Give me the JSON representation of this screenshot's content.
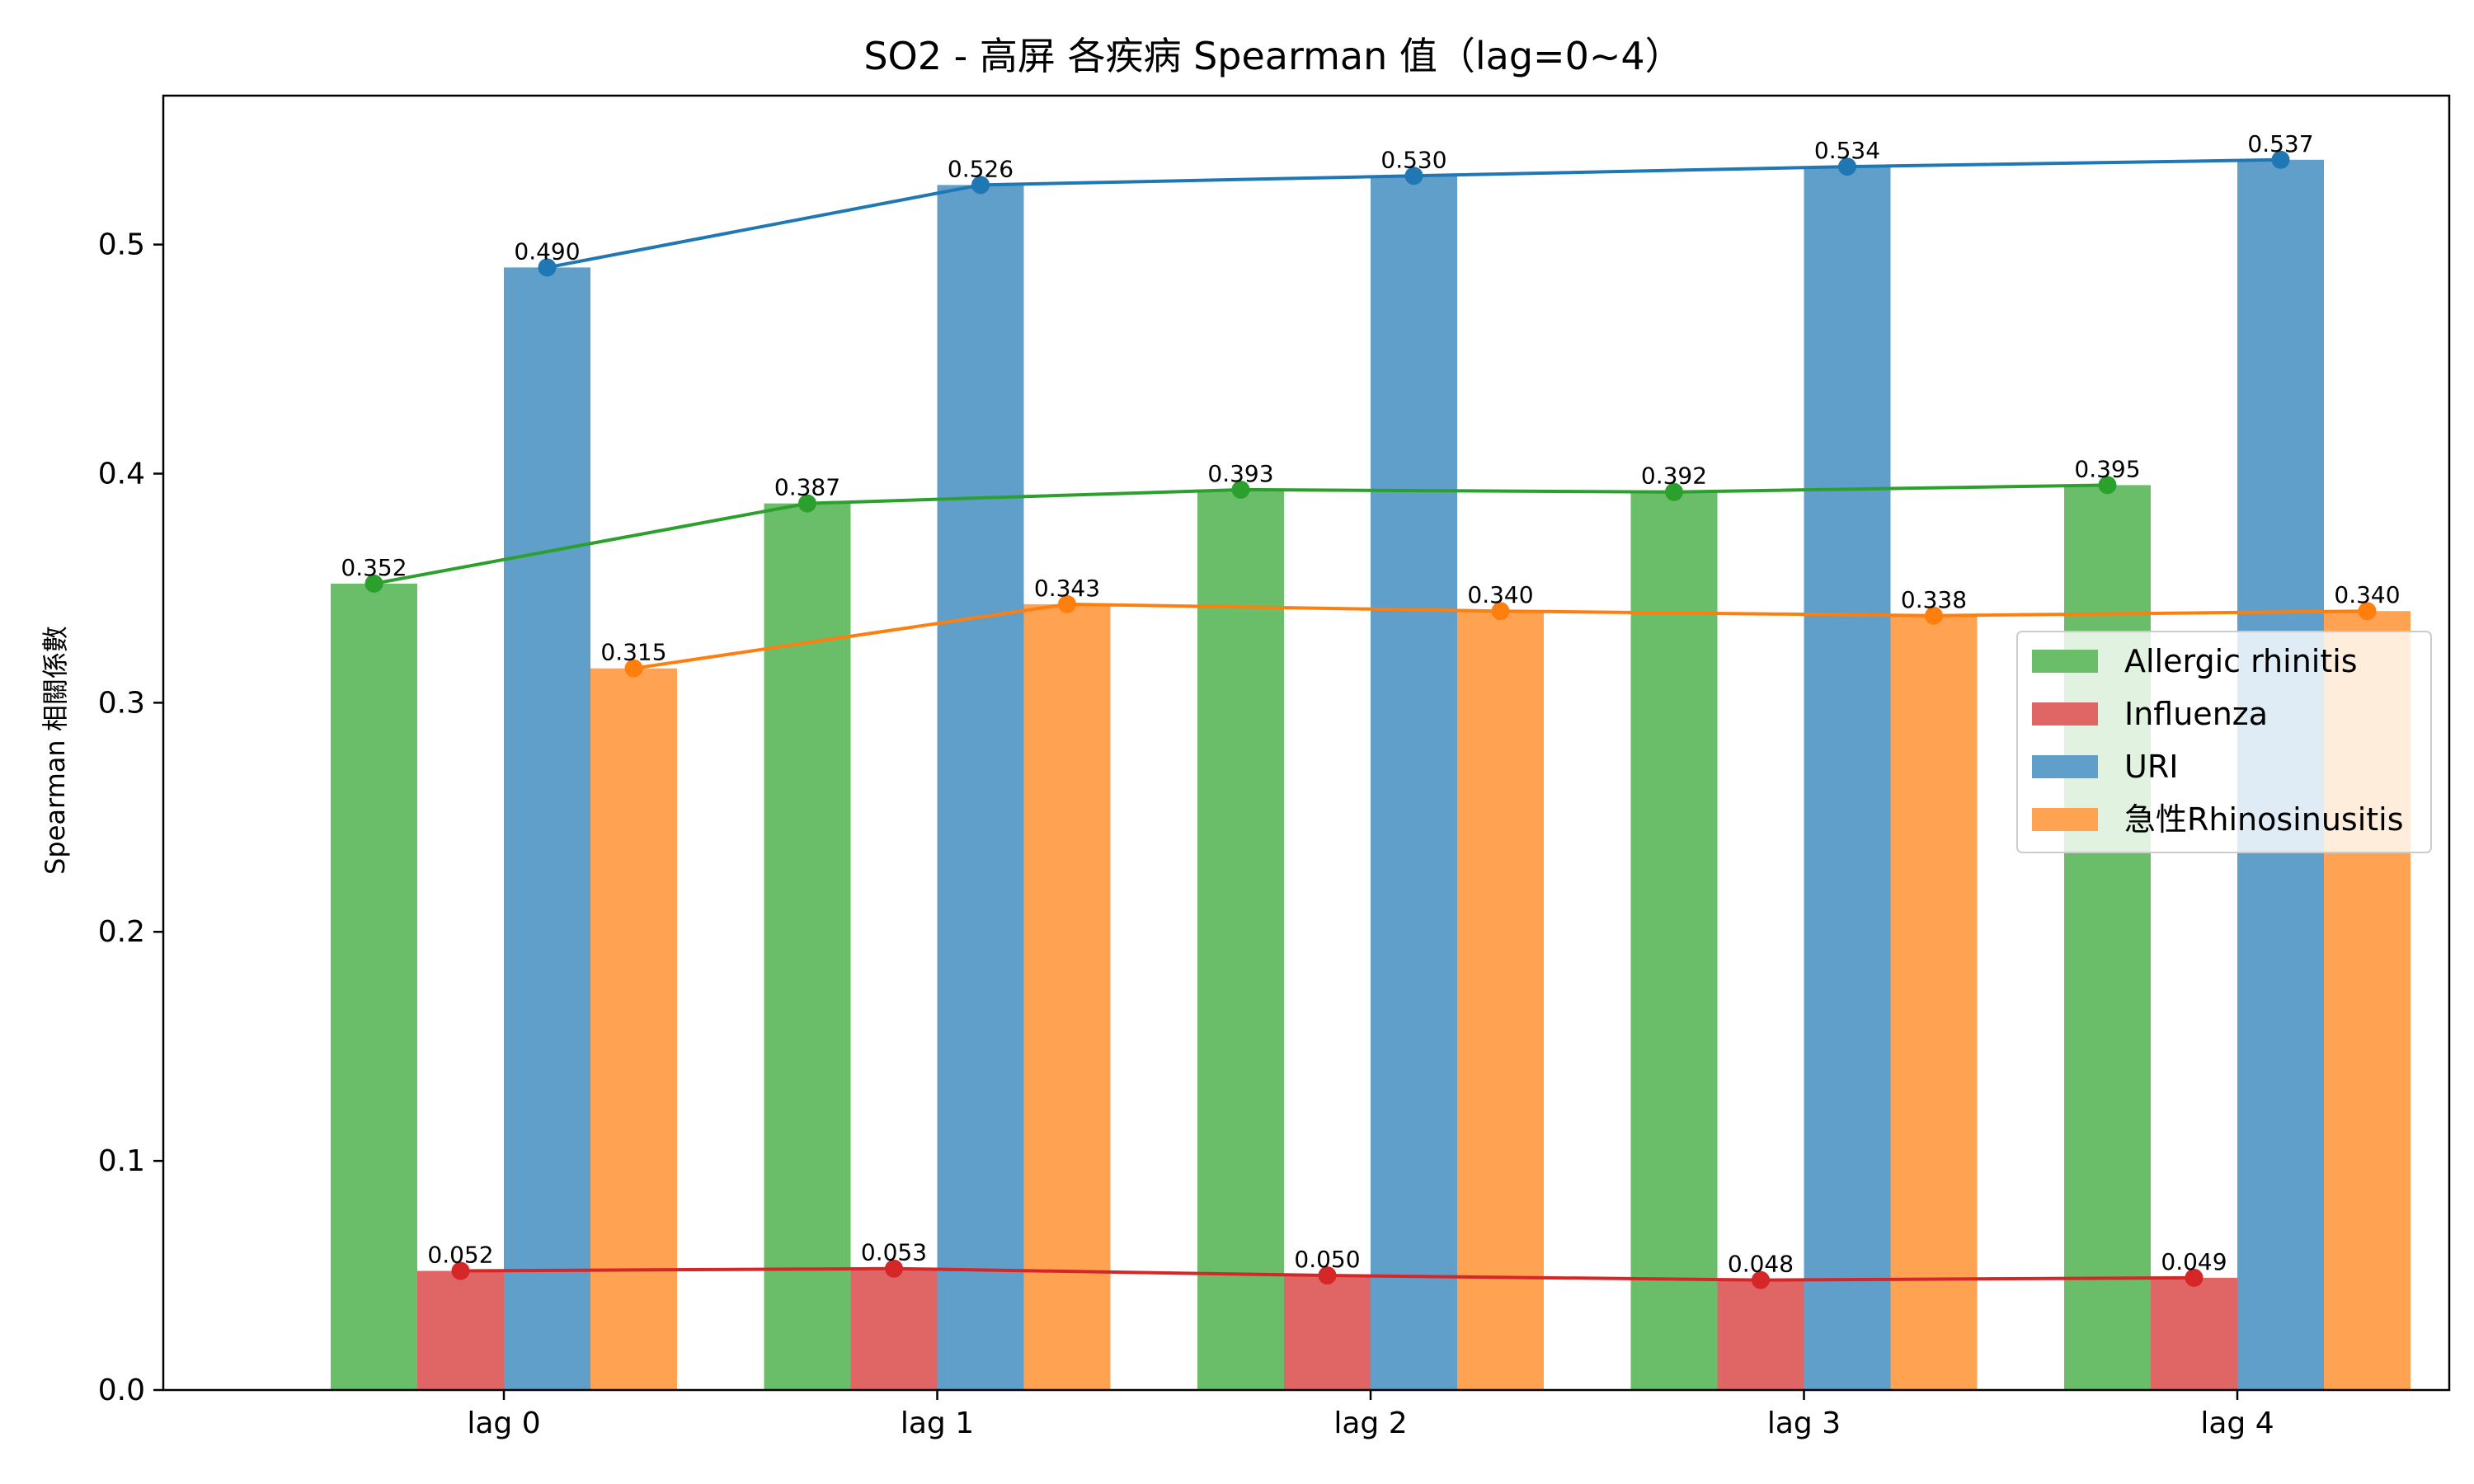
{
  "chart_data": {
    "type": "bar",
    "title": "SO2 - 高屏 各疾病 Spearman 值（lag=0~4）",
    "xlabel": "",
    "ylabel": "Spearman 相關係數",
    "categories": [
      "lag 0",
      "lag 1",
      "lag 2",
      "lag 3",
      "lag 4"
    ],
    "ylim": [
      0,
      0.565
    ],
    "yticks": [
      0.0,
      0.1,
      0.2,
      0.3,
      0.4,
      0.5
    ],
    "ytick_labels": [
      "0.0",
      "0.1",
      "0.2",
      "0.3",
      "0.4",
      "0.5"
    ],
    "grid": false,
    "legend_position": "center-right",
    "series": [
      {
        "name": "Allergic rhinitis",
        "values": [
          0.352,
          0.387,
          0.393,
          0.392,
          0.395
        ],
        "labels": [
          "0.352",
          "0.387",
          "0.393",
          "0.392",
          "0.395"
        ],
        "bar_color": "#6abe6a",
        "line_color": "#2ca02c"
      },
      {
        "name": "Influenza",
        "values": [
          0.052,
          0.053,
          0.05,
          0.048,
          0.049
        ],
        "labels": [
          "0.052",
          "0.053",
          "0.050",
          "0.048",
          "0.049"
        ],
        "bar_color": "#e06666",
        "line_color": "#d62728"
      },
      {
        "name": "URI",
        "values": [
          0.49,
          0.526,
          0.53,
          0.534,
          0.537
        ],
        "labels": [
          "0.490",
          "0.526",
          "0.530",
          "0.534",
          "0.537"
        ],
        "bar_color": "#609fca",
        "line_color": "#1f77b4"
      },
      {
        "name": "急性Rhinosinusitis",
        "values": [
          0.315,
          0.343,
          0.34,
          0.338,
          0.34
        ],
        "labels": [
          "0.315",
          "0.343",
          "0.340",
          "0.338",
          "0.340"
        ],
        "bar_color": "#ffa352",
        "line_color": "#ff7f0e"
      }
    ]
  }
}
